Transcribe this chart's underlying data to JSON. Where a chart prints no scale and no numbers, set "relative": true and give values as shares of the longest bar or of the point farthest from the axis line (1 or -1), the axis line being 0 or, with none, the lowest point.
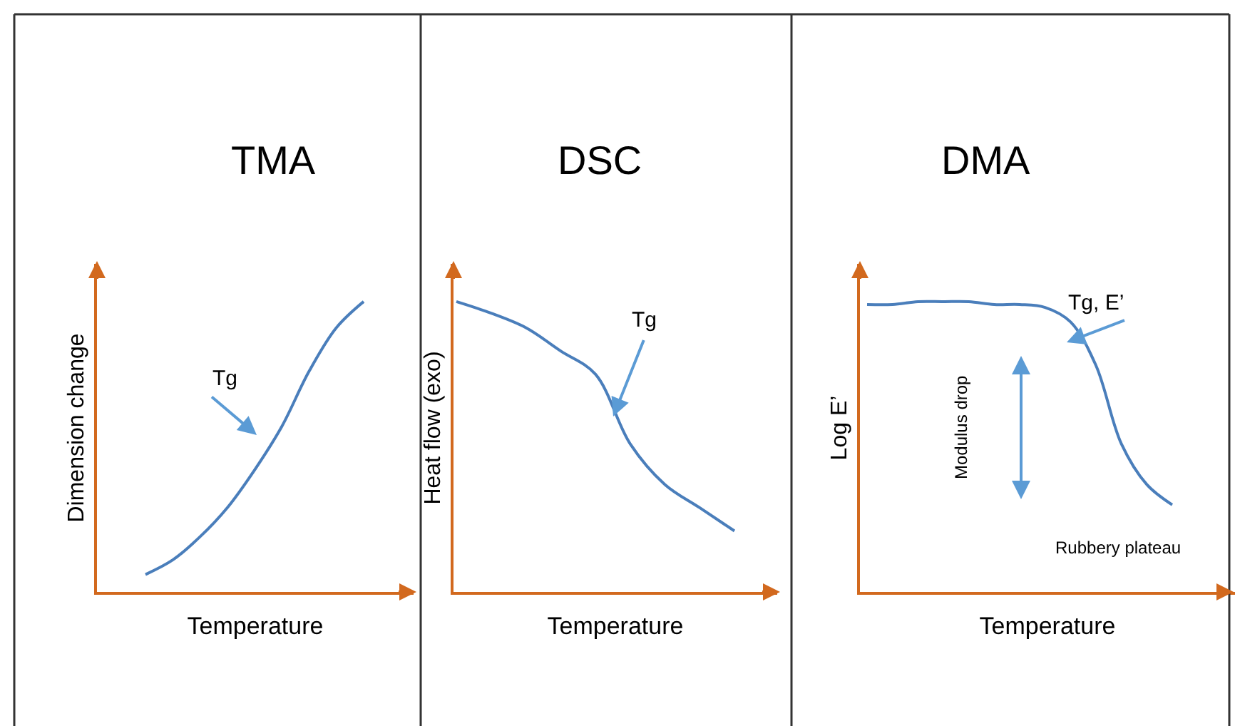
{
  "chart_data": [
    {
      "type": "line",
      "title": "TMA",
      "xlabel": "Temperature",
      "ylabel": "Dimension change",
      "relative": true,
      "color": "#4a7ebb",
      "categories": [
        null,
        null,
        null,
        null,
        null,
        null,
        null,
        null,
        null
      ],
      "values": [
        0.06,
        0.11,
        0.19,
        0.29,
        0.42,
        0.57,
        0.76,
        0.91,
        1
      ],
      "annotations": [
        "Tg"
      ]
    },
    {
      "type": "line",
      "title": "DSC",
      "xlabel": "Temperature",
      "ylabel": "Heat flow (exo)",
      "relative": true,
      "color": "#4a7ebb",
      "categories": [
        null,
        null,
        null,
        null,
        null,
        null,
        null,
        null,
        null
      ],
      "values": [
        1,
        0.96,
        0.91,
        0.83,
        0.75,
        0.51,
        0.37,
        0.29,
        0.21
      ],
      "annotations": [
        "Tg"
      ]
    },
    {
      "type": "line",
      "title": "DMA",
      "xlabel": "Temperature",
      "ylabel": "Log E’",
      "relative": true,
      "color": "#4a7ebb",
      "categories": [
        null,
        null,
        null,
        null,
        null,
        null,
        null,
        null,
        null,
        null,
        null,
        null,
        null
      ],
      "values": [
        0.99,
        0.99,
        1,
        1,
        1,
        0.99,
        0.99,
        0.98,
        0.93,
        0.78,
        0.51,
        0.37,
        0.3
      ],
      "annotations": [
        "Tg, E’",
        "Modulus drop",
        "Rubbery plateau"
      ]
    }
  ]
}
